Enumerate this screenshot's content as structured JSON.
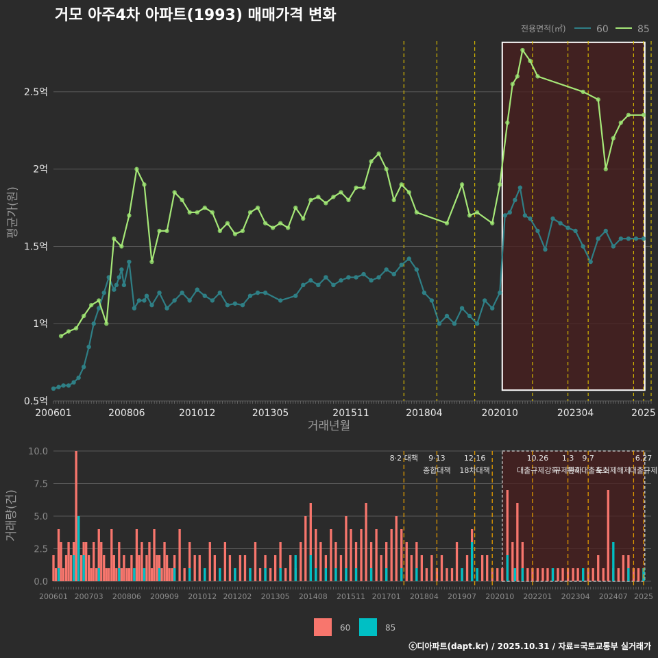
{
  "title": "거모 아주4차 아파트(1993) 매매가격 변화",
  "footer": "ⓒ디아파트(dapt.kr) / 2025.10.31 / 자료=국토교통부 실거래가",
  "colors": {
    "background": "#2b2b2b",
    "series60_line": "#2f7f86",
    "series85_line": "#a6e878",
    "series60_point": "#2f8f95",
    "series85_point": "#8fd86a",
    "bar60": "#f8766d",
    "bar85": "#00bfc4",
    "policy_line": "#d4b800",
    "highlight_fill": "#4a1f1f",
    "grid": "#5a5a5a"
  },
  "chart_data": [
    {
      "type": "line",
      "title": "거모 아주4차 아파트(1993) 매매가격 변화",
      "xlabel": "거래년월",
      "ylabel": "평균가(원)",
      "ylim": [
        0.5,
        2.85
      ],
      "x_range": [
        2006.0,
        2025.75
      ],
      "x_ticks": [
        {
          "value": 2006.0,
          "label": "200601"
        },
        {
          "value": 2008.42,
          "label": "200806"
        },
        {
          "value": 2010.75,
          "label": "201012"
        },
        {
          "value": 2013.17,
          "label": "201305"
        },
        {
          "value": 2015.83,
          "label": "201511"
        },
        {
          "value": 2018.25,
          "label": "201804"
        },
        {
          "value": 2020.75,
          "label": "202010"
        },
        {
          "value": 2023.25,
          "label": "202304"
        },
        {
          "value": 2025.5,
          "label": "2025"
        }
      ],
      "y_ticks": [
        {
          "value": 0.5,
          "label": "0.5억"
        },
        {
          "value": 1.0,
          "label": "1억"
        },
        {
          "value": 1.5,
          "label": "1.5억"
        },
        {
          "value": 2.0,
          "label": "2억"
        },
        {
          "value": 2.5,
          "label": "2.5억"
        }
      ],
      "legend": {
        "title": "전용면적(㎡)",
        "position": "top-right",
        "labels": [
          "60",
          "85"
        ]
      },
      "highlight_range": [
        2020.83,
        2025.54
      ],
      "policy_lines": [
        2017.58,
        2018.67,
        2019.92,
        2021.83,
        2023.0,
        2023.67,
        2025.17,
        2025.5,
        2025.75
      ],
      "series": [
        {
          "name": "60",
          "x": [
            2006.0,
            2006.17,
            2006.33,
            2006.5,
            2006.67,
            2006.83,
            2007.0,
            2007.17,
            2007.33,
            2007.5,
            2007.67,
            2007.83,
            2008.0,
            2008.08,
            2008.17,
            2008.25,
            2008.33,
            2008.5,
            2008.67,
            2008.83,
            2009.0,
            2009.08,
            2009.25,
            2009.5,
            2009.75,
            2010.0,
            2010.25,
            2010.5,
            2010.75,
            2011.0,
            2011.25,
            2011.5,
            2011.75,
            2012.0,
            2012.25,
            2012.5,
            2012.75,
            2013.0,
            2013.5,
            2014.0,
            2014.25,
            2014.5,
            2014.75,
            2015.0,
            2015.25,
            2015.5,
            2015.75,
            2016.0,
            2016.25,
            2016.5,
            2016.75,
            2017.0,
            2017.25,
            2017.5,
            2017.75,
            2018.0,
            2018.25,
            2018.5,
            2018.75,
            2019.0,
            2019.25,
            2019.5,
            2019.75,
            2020.0,
            2020.25,
            2020.5,
            2020.75,
            2020.92,
            2021.08,
            2021.25,
            2021.42,
            2021.58,
            2021.75,
            2022.0,
            2022.25,
            2022.5,
            2022.75,
            2023.0,
            2023.25,
            2023.5,
            2023.75,
            2024.0,
            2024.25,
            2024.5,
            2024.75,
            2025.0,
            2025.25,
            2025.5
          ],
          "values": [
            0.58,
            0.59,
            0.6,
            0.6,
            0.62,
            0.65,
            0.72,
            0.85,
            1.0,
            1.1,
            1.2,
            1.3,
            1.22,
            1.25,
            1.3,
            1.35,
            1.25,
            1.4,
            1.1,
            1.15,
            1.15,
            1.18,
            1.12,
            1.2,
            1.1,
            1.15,
            1.2,
            1.15,
            1.22,
            1.18,
            1.15,
            1.2,
            1.12,
            1.13,
            1.12,
            1.18,
            1.2,
            1.2,
            1.15,
            1.18,
            1.25,
            1.28,
            1.25,
            1.3,
            1.25,
            1.28,
            1.3,
            1.3,
            1.32,
            1.28,
            1.3,
            1.35,
            1.32,
            1.38,
            1.42,
            1.35,
            1.2,
            1.15,
            1.0,
            1.05,
            1.0,
            1.1,
            1.05,
            1.0,
            1.15,
            1.1,
            1.2,
            1.7,
            1.72,
            1.8,
            1.88,
            1.7,
            1.68,
            1.6,
            1.48,
            1.68,
            1.65,
            1.62,
            1.6,
            1.5,
            1.4,
            1.55,
            1.6,
            1.5,
            1.55,
            1.55,
            1.55,
            1.55
          ]
        },
        {
          "name": "85",
          "x": [
            2006.25,
            2006.5,
            2006.75,
            2007.0,
            2007.25,
            2007.5,
            2007.75,
            2008.0,
            2008.25,
            2008.5,
            2008.75,
            2009.0,
            2009.25,
            2009.5,
            2009.75,
            2010.0,
            2010.25,
            2010.5,
            2010.75,
            2011.0,
            2011.25,
            2011.5,
            2011.75,
            2012.0,
            2012.25,
            2012.5,
            2012.75,
            2013.0,
            2013.25,
            2013.5,
            2013.75,
            2014.0,
            2014.25,
            2014.5,
            2014.75,
            2015.0,
            2015.25,
            2015.5,
            2015.75,
            2016.0,
            2016.25,
            2016.5,
            2016.75,
            2017.0,
            2017.25,
            2017.5,
            2017.75,
            2018.0,
            2019.0,
            2019.5,
            2019.75,
            2020.0,
            2020.5,
            2020.75,
            2021.0,
            2021.17,
            2021.33,
            2021.5,
            2021.75,
            2022.0,
            2023.5,
            2024.0,
            2024.25,
            2024.5,
            2024.75,
            2025.0,
            2025.5
          ],
          "values": [
            0.92,
            0.95,
            0.97,
            1.05,
            1.12,
            1.15,
            1.0,
            1.55,
            1.5,
            1.7,
            2.0,
            1.9,
            1.4,
            1.6,
            1.6,
            1.85,
            1.8,
            1.72,
            1.72,
            1.75,
            1.72,
            1.6,
            1.65,
            1.58,
            1.6,
            1.72,
            1.75,
            1.65,
            1.62,
            1.65,
            1.62,
            1.75,
            1.68,
            1.8,
            1.82,
            1.78,
            1.82,
            1.85,
            1.8,
            1.88,
            1.88,
            2.05,
            2.1,
            2.0,
            1.8,
            1.9,
            1.85,
            1.72,
            1.65,
            1.9,
            1.7,
            1.72,
            1.65,
            1.9,
            2.3,
            2.55,
            2.6,
            2.77,
            2.7,
            2.6,
            2.5,
            2.45,
            2.0,
            2.2,
            2.3,
            2.35,
            2.35
          ]
        }
      ]
    },
    {
      "type": "bar",
      "xlabel": "",
      "ylabel": "거래량(건)",
      "ylim": [
        0,
        10
      ],
      "x_range": [
        2006.0,
        2025.75
      ],
      "y_ticks": [
        {
          "value": 0,
          "label": "0.0"
        },
        {
          "value": 2.5,
          "label": "2.5"
        },
        {
          "value": 5,
          "label": "5.0"
        },
        {
          "value": 7.5,
          "label": "7.5"
        },
        {
          "value": 10,
          "label": "10.0"
        }
      ],
      "x_ticks": [
        {
          "value": 2006.0,
          "label": "200601"
        },
        {
          "value": 2007.17,
          "label": "200703"
        },
        {
          "value": 2008.42,
          "label": "200806"
        },
        {
          "value": 2009.67,
          "label": "200909"
        },
        {
          "value": 2010.92,
          "label": "201012"
        },
        {
          "value": 2012.08,
          "label": "201202"
        },
        {
          "value": 2013.33,
          "label": "201305"
        },
        {
          "value": 2014.58,
          "label": "201408"
        },
        {
          "value": 2015.83,
          "label": "201511"
        },
        {
          "value": 2017.0,
          "label": "201701"
        },
        {
          "value": 2018.25,
          "label": "201804"
        },
        {
          "value": 2019.5,
          "label": "201907"
        },
        {
          "value": 2020.75,
          "label": "202010"
        },
        {
          "value": 2022.0,
          "label": "202201"
        },
        {
          "value": 2023.25,
          "label": "202304"
        },
        {
          "value": 2024.5,
          "label": "202407"
        },
        {
          "value": 2025.5,
          "label": "2025"
        }
      ],
      "legend": {
        "position": "bottom",
        "labels": [
          "60",
          "85"
        ]
      },
      "highlight_range": [
        2020.83,
        2025.54
      ],
      "policy_lines": [
        2017.58,
        2018.67,
        2019.92,
        2020.5,
        2021.83,
        2023.0,
        2023.67,
        2025.17,
        2025.5
      ],
      "annotations": [
        {
          "x": 2017.58,
          "date": "8·2 대책",
          "name": ""
        },
        {
          "x": 2018.67,
          "date": "9·13",
          "name": "종합대책"
        },
        {
          "x": 2019.92,
          "date": "12·16",
          "name": "18차대책"
        },
        {
          "x": 2022.0,
          "date": "10.26",
          "name": "대출규제강화"
        },
        {
          "x": 2023.0,
          "date": "1.3",
          "name": "규제완화"
        },
        {
          "x": 2023.67,
          "date": "9.7",
          "name": "특례대출축소"
        },
        {
          "x": 2024.5,
          "date": "",
          "name": "토허제해제"
        },
        {
          "x": 2025.5,
          "date": "6.27",
          "name": "대출규제"
        }
      ],
      "series": [
        {
          "name": "60",
          "x": [
            2006.0,
            2006.08,
            2006.17,
            2006.25,
            2006.33,
            2006.42,
            2006.5,
            2006.58,
            2006.67,
            2006.75,
            2006.83,
            2006.92,
            2007.0,
            2007.08,
            2007.17,
            2007.25,
            2007.33,
            2007.42,
            2007.5,
            2007.58,
            2007.67,
            2007.75,
            2007.83,
            2007.92,
            2008.0,
            2008.08,
            2008.17,
            2008.25,
            2008.33,
            2008.42,
            2008.5,
            2008.58,
            2008.67,
            2008.75,
            2008.83,
            2008.92,
            2009.0,
            2009.08,
            2009.17,
            2009.25,
            2009.33,
            2009.42,
            2009.5,
            2009.58,
            2009.67,
            2009.75,
            2009.83,
            2009.92,
            2010.0,
            2010.17,
            2010.33,
            2010.5,
            2010.67,
            2010.83,
            2011.0,
            2011.17,
            2011.33,
            2011.5,
            2011.67,
            2011.83,
            2012.0,
            2012.17,
            2012.33,
            2012.5,
            2012.67,
            2012.83,
            2013.0,
            2013.17,
            2013.33,
            2013.5,
            2013.67,
            2013.83,
            2014.0,
            2014.17,
            2014.33,
            2014.5,
            2014.67,
            2014.83,
            2015.0,
            2015.17,
            2015.33,
            2015.5,
            2015.67,
            2015.83,
            2016.0,
            2016.17,
            2016.33,
            2016.5,
            2016.67,
            2016.83,
            2017.0,
            2017.17,
            2017.33,
            2017.5,
            2017.67,
            2017.83,
            2018.0,
            2018.17,
            2018.33,
            2018.5,
            2018.67,
            2018.83,
            2019.0,
            2019.17,
            2019.33,
            2019.5,
            2019.67,
            2019.83,
            2020.0,
            2020.17,
            2020.33,
            2020.5,
            2020.67,
            2020.83,
            2021.0,
            2021.17,
            2021.33,
            2021.5,
            2021.67,
            2021.83,
            2022.0,
            2022.17,
            2022.33,
            2022.5,
            2022.67,
            2022.83,
            2023.0,
            2023.17,
            2023.33,
            2023.5,
            2023.67,
            2023.83,
            2024.0,
            2024.17,
            2024.33,
            2024.5,
            2024.67,
            2024.83,
            2025.0,
            2025.17,
            2025.33,
            2025.5
          ],
          "values": [
            2,
            1,
            4,
            3,
            1,
            2,
            3,
            2,
            3,
            10,
            5,
            2,
            3,
            3,
            2,
            1,
            3,
            1,
            4,
            3,
            2,
            1,
            1,
            4,
            2,
            1,
            3,
            1,
            2,
            1,
            1,
            2,
            1,
            4,
            2,
            3,
            1,
            2,
            3,
            1,
            4,
            2,
            2,
            1,
            3,
            2,
            1,
            1,
            2,
            4,
            1,
            3,
            2,
            2,
            1,
            3,
            2,
            1,
            3,
            2,
            1,
            2,
            2,
            1,
            3,
            1,
            2,
            1,
            2,
            3,
            1,
            2,
            1,
            3,
            5,
            6,
            4,
            3,
            2,
            4,
            3,
            2,
            5,
            4,
            3,
            4,
            6,
            3,
            4,
            2,
            3,
            4,
            5,
            4,
            3,
            2,
            3,
            2,
            1,
            2,
            1,
            2,
            1,
            1,
            3,
            1,
            2,
            4,
            1,
            2,
            2,
            1,
            1,
            1,
            7,
            3,
            6,
            3,
            1,
            1,
            1,
            1,
            1,
            1,
            1,
            1,
            1,
            1,
            1,
            1,
            1,
            1,
            2,
            1,
            7,
            1,
            1,
            2,
            2,
            1,
            1,
            1
          ]
        },
        {
          "name": "85",
          "x": [
            2006.17,
            2006.67,
            2006.83,
            2007.0,
            2007.5,
            2008.17,
            2008.67,
            2009.0,
            2009.5,
            2010.0,
            2010.5,
            2011.0,
            2011.5,
            2012.0,
            2012.5,
            2013.0,
            2013.5,
            2014.0,
            2014.5,
            2014.67,
            2015.0,
            2015.33,
            2015.67,
            2016.0,
            2016.5,
            2017.0,
            2017.5,
            2018.0,
            2019.5,
            2019.83,
            2020.0,
            2021.0,
            2021.25,
            2021.5,
            2022.5,
            2023.5,
            2024.5,
            2025.0,
            2025.5
          ],
          "values": [
            1,
            2,
            5,
            2,
            1,
            1,
            1,
            1,
            1,
            1,
            1,
            1,
            1,
            1,
            1,
            1,
            1,
            2,
            2,
            1,
            1,
            1,
            1,
            1,
            1,
            1,
            1,
            1,
            1,
            3,
            1,
            2,
            1,
            1,
            1,
            1,
            3,
            1,
            1
          ]
        }
      ]
    }
  ]
}
